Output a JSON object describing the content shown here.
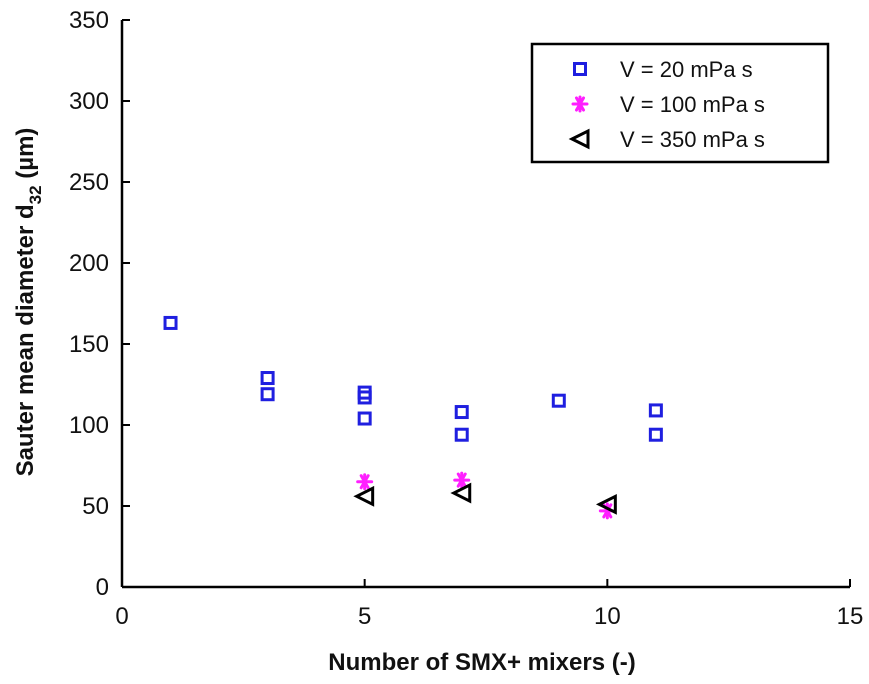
{
  "chart_data": {
    "type": "scatter",
    "title": "",
    "xlabel": "Number of SMX+ mixers (-)",
    "ylabel": {
      "main": "Sauter mean diameter d",
      "subscript": "32",
      "unit": " (µm)"
    },
    "xlim": [
      0,
      15
    ],
    "ylim": [
      0,
      350
    ],
    "xticks": [
      0,
      5,
      10,
      15
    ],
    "yticks": [
      0,
      50,
      100,
      150,
      200,
      250,
      300,
      350
    ],
    "grid": false,
    "legend_position": "top-right",
    "series": [
      {
        "name": "V = 20 mPa s",
        "marker": "square",
        "color": "#1f1fe0",
        "points": [
          [
            1,
            163
          ],
          [
            3,
            129
          ],
          [
            3,
            119
          ],
          [
            5,
            120
          ],
          [
            5,
            117
          ],
          [
            5,
            104
          ],
          [
            7,
            108
          ],
          [
            7,
            94
          ],
          [
            9,
            115
          ],
          [
            11,
            109
          ],
          [
            11,
            94
          ]
        ]
      },
      {
        "name": "V = 100 mPa s",
        "marker": "asterisk",
        "color": "#ff1fff",
        "points": [
          [
            5,
            65
          ],
          [
            7,
            66
          ],
          [
            10,
            47
          ]
        ]
      },
      {
        "name": "V = 350 mPa s",
        "marker": "triangle-left",
        "color": "#000000",
        "points": [
          [
            5,
            56
          ],
          [
            7,
            58
          ],
          [
            10,
            51
          ]
        ]
      }
    ]
  }
}
